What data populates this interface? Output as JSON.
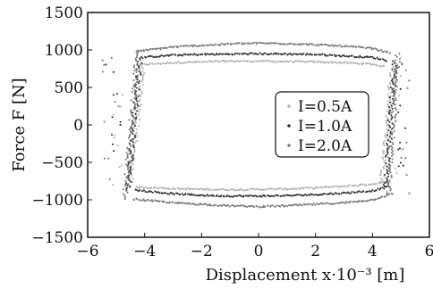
{
  "chart_data": {
    "type": "scatter",
    "title": "",
    "xlabel": "Displacement  x·10⁻³ [m]",
    "ylabel": "Force  F [N]",
    "xlim": [
      -6,
      6
    ],
    "ylim": [
      -1500,
      1500
    ],
    "xticks": [
      "−6",
      "−4",
      "−2",
      "0",
      "2",
      "4",
      "6"
    ],
    "yticks": [
      "1500",
      "1000",
      "500",
      "0",
      "−500",
      "−1000",
      "−1500"
    ],
    "grid": false,
    "legend_position": "right",
    "series": [
      {
        "name": "I=0.5A",
        "color": "#b3b3b3",
        "upper": [
          [
            -4.2,
            800
          ],
          [
            -3,
            830
          ],
          [
            -2,
            840
          ],
          [
            -1,
            850
          ],
          [
            0,
            850
          ],
          [
            1,
            845
          ],
          [
            2,
            840
          ],
          [
            3,
            830
          ],
          [
            4,
            810
          ],
          [
            4.4,
            780
          ]
        ],
        "lower": [
          [
            -4.3,
            -830
          ],
          [
            -3,
            -850
          ],
          [
            -2,
            -860
          ],
          [
            -1,
            -865
          ],
          [
            0,
            -860
          ],
          [
            1,
            -855
          ],
          [
            2,
            -840
          ],
          [
            3,
            -820
          ],
          [
            4,
            -790
          ],
          [
            4.6,
            -760
          ]
        ],
        "left_x": -4.5,
        "right_x": 4.7
      },
      {
        "name": "I=1.0A",
        "color": "#333333",
        "upper": [
          [
            -4.1,
            900
          ],
          [
            -3,
            930
          ],
          [
            -2,
            940
          ],
          [
            -1,
            945
          ],
          [
            0,
            950
          ],
          [
            1,
            945
          ],
          [
            2,
            940
          ],
          [
            3,
            920
          ],
          [
            4,
            900
          ],
          [
            4.5,
            860
          ]
        ],
        "lower": [
          [
            -4.3,
            -870
          ],
          [
            -3,
            -920
          ],
          [
            -2,
            -940
          ],
          [
            -1,
            -950
          ],
          [
            0,
            -950
          ],
          [
            1,
            -945
          ],
          [
            2,
            -930
          ],
          [
            3,
            -910
          ],
          [
            4,
            -880
          ],
          [
            4.6,
            -820
          ]
        ],
        "left_x": -4.6,
        "right_x": 4.8
      },
      {
        "name": "I=2.0A",
        "color": "#7a7a7a",
        "upper": [
          [
            -4.3,
            980
          ],
          [
            -3,
            1040
          ],
          [
            -2,
            1060
          ],
          [
            -1,
            1080
          ],
          [
            0,
            1090
          ],
          [
            1,
            1085
          ],
          [
            2,
            1070
          ],
          [
            3,
            1050
          ],
          [
            4,
            1020
          ],
          [
            4.6,
            960
          ]
        ],
        "lower": [
          [
            -4.4,
            -990
          ],
          [
            -3,
            -1040
          ],
          [
            -2,
            -1060
          ],
          [
            -1,
            -1080
          ],
          [
            0,
            -1090
          ],
          [
            1,
            -1080
          ],
          [
            2,
            -1060
          ],
          [
            3,
            -1040
          ],
          [
            4,
            -1000
          ],
          [
            4.7,
            -920
          ]
        ],
        "left_x": -4.7,
        "right_x": 4.9
      }
    ]
  },
  "legend": {
    "entries": [
      {
        "label": "I=0.5A",
        "color": "#b3b3b3"
      },
      {
        "label": "I=1.0A",
        "color": "#333333"
      },
      {
        "label": "I=2.0A",
        "color": "#7a7a7a"
      }
    ]
  }
}
